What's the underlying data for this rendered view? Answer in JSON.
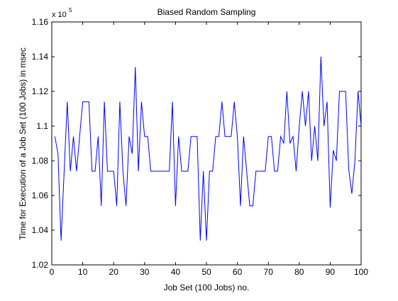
{
  "chart_data": {
    "type": "line",
    "title": "Biased Random Sampling",
    "xlabel": "Job Set (100 Jobs) no.",
    "ylabel": "Time for Execution of a Job Set (100 Jobs) in msec",
    "y_multiplier_label": "x 10",
    "y_multiplier_exponent": "5",
    "xlim": [
      0,
      100
    ],
    "ylim": [
      1.02,
      1.16
    ],
    "x_ticks": [
      0,
      10,
      20,
      30,
      40,
      50,
      60,
      70,
      80,
      90,
      100
    ],
    "x_tick_labels": [
      "0",
      "10",
      "20",
      "30",
      "40",
      "50",
      "60",
      "70",
      "80",
      "90",
      "100"
    ],
    "y_ticks": [
      1.02,
      1.04,
      1.06,
      1.08,
      1.1,
      1.12,
      1.14,
      1.16
    ],
    "y_tick_labels": [
      "1.02",
      "1.04",
      "1.06",
      "1.08",
      "1.1",
      "1.12",
      "1.14",
      "1.16"
    ],
    "grid": false,
    "line_color": "#0000ff",
    "series": [
      {
        "x": [
          1,
          2,
          3,
          4,
          5,
          6,
          7,
          8,
          9,
          10,
          11,
          12,
          13,
          14,
          15,
          16,
          17,
          18,
          19,
          20,
          21,
          22,
          23,
          24,
          25,
          26,
          27,
          28,
          29,
          30,
          31,
          32,
          33,
          34,
          35,
          36,
          37,
          38,
          39,
          40,
          41,
          42,
          43,
          44,
          45,
          46,
          47,
          48,
          49,
          50,
          51,
          52,
          53,
          54,
          55,
          56,
          57,
          58,
          59,
          60,
          61,
          62,
          63,
          64,
          65,
          66,
          67,
          68,
          69,
          70,
          71,
          72,
          73,
          74,
          75,
          76,
          77,
          78,
          79,
          80,
          81,
          82,
          83,
          84,
          85,
          86,
          87,
          88,
          89,
          90,
          91,
          92,
          93,
          94,
          95,
          96,
          97,
          98,
          99,
          100
        ],
        "values": [
          1.094,
          1.084,
          1.034,
          1.074,
          1.114,
          1.074,
          1.094,
          1.074,
          1.094,
          1.114,
          1.114,
          1.114,
          1.074,
          1.074,
          1.094,
          1.054,
          1.114,
          1.074,
          1.074,
          1.074,
          1.054,
          1.114,
          1.074,
          1.054,
          1.094,
          1.084,
          1.134,
          1.074,
          1.114,
          1.094,
          1.094,
          1.074,
          1.074,
          1.074,
          1.074,
          1.074,
          1.074,
          1.074,
          1.114,
          1.054,
          1.094,
          1.074,
          1.074,
          1.074,
          1.094,
          1.094,
          1.094,
          1.034,
          1.074,
          1.034,
          1.074,
          1.074,
          1.094,
          1.094,
          1.114,
          1.094,
          1.094,
          1.094,
          1.114,
          1.094,
          1.054,
          1.094,
          1.074,
          1.054,
          1.054,
          1.074,
          1.074,
          1.074,
          1.074,
          1.094,
          1.094,
          1.074,
          1.074,
          1.094,
          1.09,
          1.12,
          1.09,
          1.094,
          1.074,
          1.1,
          1.12,
          1.1,
          1.12,
          1.08,
          1.1,
          1.08,
          1.14,
          1.1,
          1.114,
          1.053,
          1.086,
          1.08,
          1.12,
          1.12,
          1.12,
          1.075,
          1.061,
          1.08,
          1.12,
          1.1
        ]
      }
    ]
  }
}
